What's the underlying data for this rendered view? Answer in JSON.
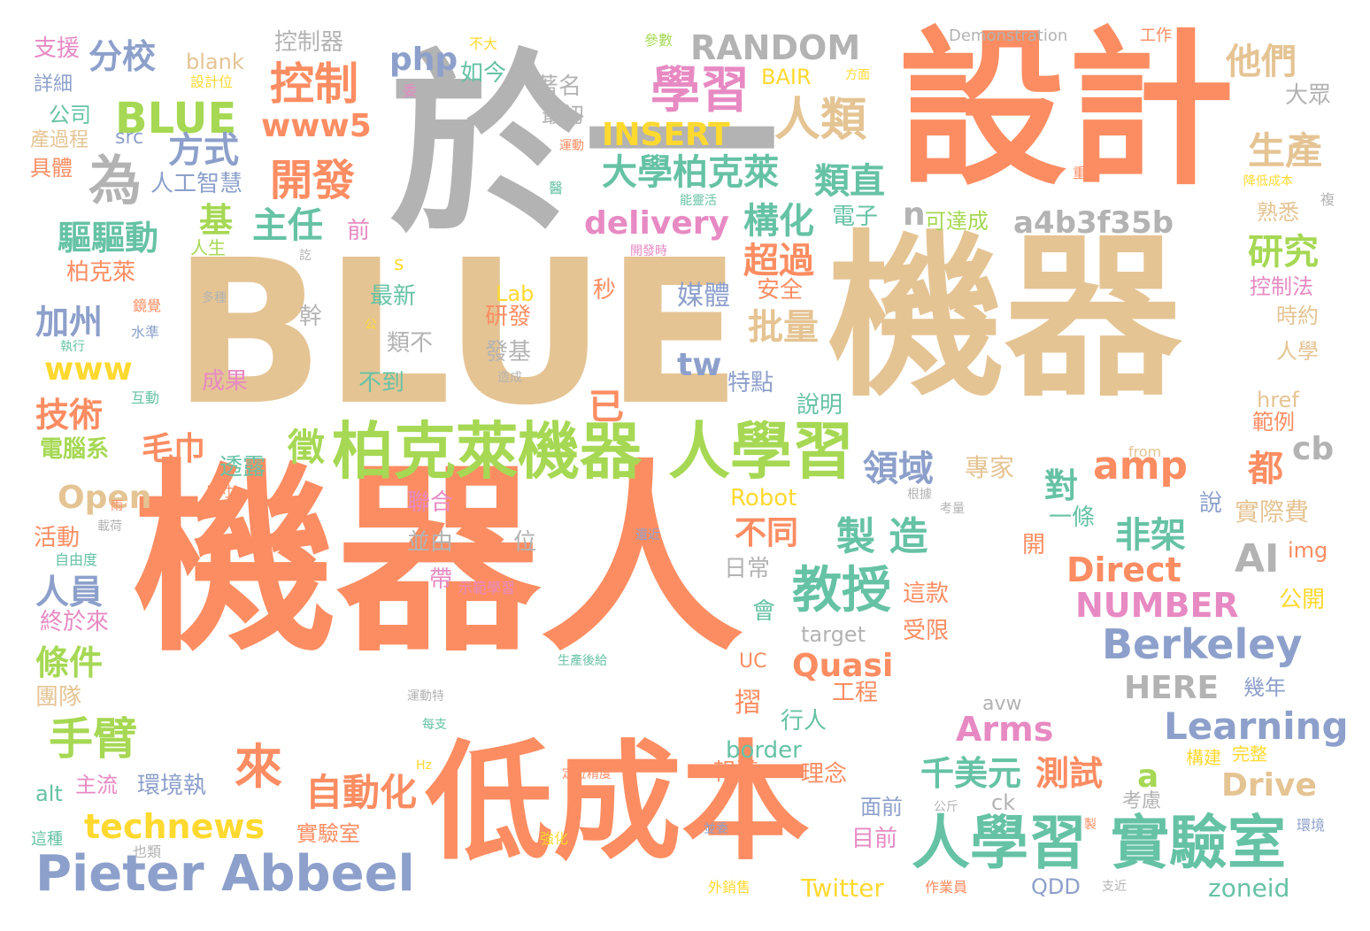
{
  "palette": {
    "orange": "#fc8d62",
    "gray": "#b3b3b3",
    "tan": "#e5c494",
    "green": "#a6d854",
    "teal": "#66c2a5",
    "blue": "#8da0cb",
    "pink": "#e78ac3",
    "yellow": "#ffd92f"
  },
  "words": [
    {
      "text": "機器人",
      "color": "orange"
    },
    {
      "text": "BLUE",
      "color": "tan"
    },
    {
      "text": "機器",
      "color": "tan"
    },
    {
      "text": "設計",
      "color": "orange"
    },
    {
      "text": "於一",
      "color": "gray"
    },
    {
      "text": "低成本",
      "color": "orange"
    },
    {
      "text": "柏克萊機器",
      "color": "green"
    },
    {
      "text": "人學習",
      "color": "green"
    },
    {
      "text": "人學習",
      "color": "teal"
    },
    {
      "text": "實驗室",
      "color": "teal"
    },
    {
      "text": "Pieter Abbeel",
      "color": "blue"
    },
    {
      "text": "學習",
      "color": "pink"
    },
    {
      "text": "控制",
      "color": "orange"
    },
    {
      "text": "BLUE",
      "color": "green"
    },
    {
      "text": "開發",
      "color": "orange"
    },
    {
      "text": "教授",
      "color": "teal"
    },
    {
      "text": "Berkeley",
      "color": "blue"
    },
    {
      "text": "人類",
      "color": "tan"
    },
    {
      "text": "手臂",
      "color": "green"
    },
    {
      "text": "來",
      "color": "orange"
    },
    {
      "text": "自動化",
      "color": "orange"
    },
    {
      "text": "大學柏克萊",
      "color": "teal"
    },
    {
      "text": "為",
      "color": "gray"
    },
    {
      "text": "他們",
      "color": "tan"
    },
    {
      "text": "RANDOM",
      "color": "gray"
    },
    {
      "text": "amp",
      "color": "orange"
    },
    {
      "text": "AI",
      "color": "gray"
    },
    {
      "text": "Learning",
      "color": "blue"
    },
    {
      "text": "Arms",
      "color": "pink"
    },
    {
      "text": "technews",
      "color": "yellow"
    },
    {
      "text": "a4b3f35b",
      "color": "gray"
    },
    {
      "text": "www5",
      "color": "orange"
    },
    {
      "text": "製 造",
      "color": "teal"
    },
    {
      "text": "千美元",
      "color": "teal"
    },
    {
      "text": "測試",
      "color": "orange"
    },
    {
      "text": "Direct",
      "color": "orange"
    },
    {
      "text": "NUMBER",
      "color": "pink"
    },
    {
      "text": "delivery",
      "color": "pink"
    },
    {
      "text": "分校",
      "color": "blue"
    },
    {
      "text": "INSERT",
      "color": "yellow"
    },
    {
      "text": "方式",
      "color": "blue"
    },
    {
      "text": "基",
      "color": "green"
    },
    {
      "text": "主任",
      "color": "teal"
    },
    {
      "text": "驅驅動",
      "color": "teal"
    },
    {
      "text": "構化",
      "color": "teal"
    },
    {
      "text": "超過",
      "color": "orange"
    },
    {
      "text": "批量",
      "color": "tan"
    },
    {
      "text": "php",
      "color": "blue"
    },
    {
      "text": "Open",
      "color": "tan"
    },
    {
      "text": "Quasi",
      "color": "orange"
    },
    {
      "text": "HERE",
      "color": "gray"
    },
    {
      "text": "Drive",
      "color": "tan"
    },
    {
      "text": "生產",
      "color": "tan"
    },
    {
      "text": "研究",
      "color": "green"
    },
    {
      "text": "類直",
      "color": "teal"
    },
    {
      "text": "領域",
      "color": "blue"
    },
    {
      "text": "非架",
      "color": "teal"
    },
    {
      "text": "徵",
      "color": "green"
    },
    {
      "text": "不同",
      "color": "orange"
    },
    {
      "text": "技術",
      "color": "orange"
    },
    {
      "text": "毛巾",
      "color": "orange"
    },
    {
      "text": "加州",
      "color": "blue"
    },
    {
      "text": "人員",
      "color": "blue"
    },
    {
      "text": "條件",
      "color": "green"
    },
    {
      "text": "電腦系",
      "color": "green"
    },
    {
      "text": "www",
      "color": "yellow"
    },
    {
      "text": "tw",
      "color": "blue"
    },
    {
      "text": "都",
      "color": "orange"
    },
    {
      "text": "對",
      "color": "teal"
    },
    {
      "text": "已",
      "color": "orange"
    },
    {
      "text": "n",
      "color": "gray"
    },
    {
      "text": "cb",
      "color": "gray"
    },
    {
      "text": "a",
      "color": "green"
    },
    {
      "text": "媒體",
      "color": "blue"
    },
    {
      "text": "摺",
      "color": "orange"
    },
    {
      "text": "專家",
      "color": "tan"
    },
    {
      "text": "實際費",
      "color": "tan"
    },
    {
      "text": "Robot",
      "color": "yellow"
    },
    {
      "text": "border",
      "color": "teal"
    },
    {
      "text": "Twitter",
      "color": "yellow"
    },
    {
      "text": "zoneid",
      "color": "teal"
    },
    {
      "text": "QDD",
      "color": "blue"
    },
    {
      "text": "Lab",
      "color": "yellow"
    },
    {
      "text": "blank",
      "color": "tan"
    },
    {
      "text": "BAIR",
      "color": "yellow"
    },
    {
      "text": "src",
      "color": "blue"
    },
    {
      "text": "target",
      "color": "gray"
    },
    {
      "text": "avw",
      "color": "gray"
    },
    {
      "text": "ck",
      "color": "gray"
    },
    {
      "text": "alt",
      "color": "teal"
    },
    {
      "text": "href",
      "color": "tan"
    },
    {
      "text": "img",
      "color": "orange"
    },
    {
      "text": "UC",
      "color": "orange"
    },
    {
      "text": "s",
      "color": "yellow"
    },
    {
      "text": "from",
      "color": "tan"
    },
    {
      "text": "Hz",
      "color": "yellow"
    },
    {
      "text": "Demonstration",
      "color": "gray"
    },
    {
      "text": "控制器",
      "color": "gray"
    },
    {
      "text": "如今",
      "color": "teal"
    },
    {
      "text": "著名",
      "color": "gray"
    },
    {
      "text": "最初",
      "color": "gray"
    },
    {
      "text": "人工智慧",
      "color": "blue"
    },
    {
      "text": "公司",
      "color": "teal"
    },
    {
      "text": "支援",
      "color": "pink"
    },
    {
      "text": "詳細",
      "color": "blue"
    },
    {
      "text": "產過程",
      "color": "tan"
    },
    {
      "text": "具體",
      "color": "orange"
    },
    {
      "text": "人生",
      "color": "green"
    },
    {
      "text": "柏克萊",
      "color": "orange"
    },
    {
      "text": "前",
      "color": "pink"
    },
    {
      "text": "可達成",
      "color": "green"
    },
    {
      "text": "電子",
      "color": "teal"
    },
    {
      "text": "安全",
      "color": "orange"
    },
    {
      "text": "秒",
      "color": "orange"
    },
    {
      "text": "最新",
      "color": "teal"
    },
    {
      "text": "類不",
      "color": "gray"
    },
    {
      "text": "發基",
      "color": "gray"
    },
    {
      "text": "研發",
      "color": "orange"
    },
    {
      "text": "幹",
      "color": "gray"
    },
    {
      "text": "成果",
      "color": "pink"
    },
    {
      "text": "不到",
      "color": "teal"
    },
    {
      "text": "特點",
      "color": "blue"
    },
    {
      "text": "說明",
      "color": "teal"
    },
    {
      "text": "透露",
      "color": "teal"
    },
    {
      "text": "聯合",
      "color": "pink"
    },
    {
      "text": "並由",
      "color": "gray"
    },
    {
      "text": "位",
      "color": "gray"
    },
    {
      "text": "帶",
      "color": "pink"
    },
    {
      "text": "示範學習",
      "color": "pink"
    },
    {
      "text": "日常",
      "color": "gray"
    },
    {
      "text": "會",
      "color": "teal"
    },
    {
      "text": "這款",
      "color": "orange"
    },
    {
      "text": "受限",
      "color": "orange"
    },
    {
      "text": "一條",
      "color": "teal"
    },
    {
      "text": "開",
      "color": "orange"
    },
    {
      "text": "說",
      "color": "blue"
    },
    {
      "text": "公開",
      "color": "yellow"
    },
    {
      "text": "時約",
      "color": "tan"
    },
    {
      "text": "人學",
      "color": "tan"
    },
    {
      "text": "範例",
      "color": "orange"
    },
    {
      "text": "熟悉",
      "color": "tan"
    },
    {
      "text": "控制法",
      "color": "pink"
    },
    {
      "text": "大眾",
      "color": "gray"
    },
    {
      "text": "工程",
      "color": "orange"
    },
    {
      "text": "行人",
      "color": "teal"
    },
    {
      "text": "報導",
      "color": "orange"
    },
    {
      "text": "理念",
      "color": "orange"
    },
    {
      "text": "面前",
      "color": "blue"
    },
    {
      "text": "目前",
      "color": "pink"
    },
    {
      "text": "構建",
      "color": "yellow"
    },
    {
      "text": "完整",
      "color": "yellow"
    },
    {
      "text": "考慮",
      "color": "gray"
    },
    {
      "text": "幾年",
      "color": "blue"
    },
    {
      "text": "環境執",
      "color": "blue"
    },
    {
      "text": "主流",
      "color": "pink"
    },
    {
      "text": "實驗室",
      "color": "orange"
    },
    {
      "text": "終於來",
      "color": "pink"
    },
    {
      "text": "團隊",
      "color": "tan"
    },
    {
      "text": "活動",
      "color": "orange"
    },
    {
      "text": "自由度",
      "color": "teal"
    },
    {
      "text": "這種",
      "color": "teal"
    },
    {
      "text": "也類",
      "color": "gray"
    },
    {
      "text": "外銷售",
      "color": "yellow"
    },
    {
      "text": "強化",
      "color": "yellow"
    },
    {
      "text": "並委",
      "color": "blue"
    },
    {
      "text": "作業員",
      "color": "orange"
    },
    {
      "text": "支近",
      "color": "gray"
    },
    {
      "text": "公斤",
      "color": "gray"
    },
    {
      "text": "環境",
      "color": "blue"
    },
    {
      "text": "製",
      "color": "orange"
    },
    {
      "text": "定位精度",
      "color": "orange"
    },
    {
      "text": "生產後給",
      "color": "teal"
    },
    {
      "text": "運動特",
      "color": "gray"
    },
    {
      "text": "每支",
      "color": "teal"
    },
    {
      "text": "根據",
      "color": "gray"
    },
    {
      "text": "考量",
      "color": "gray"
    },
    {
      "text": "還近",
      "color": "blue"
    },
    {
      "text": "尺寸",
      "color": "orange"
    },
    {
      "text": "載荷",
      "color": "gray"
    },
    {
      "text": "雨",
      "color": "orange"
    },
    {
      "text": "互動",
      "color": "teal"
    },
    {
      "text": "執行",
      "color": "teal"
    },
    {
      "text": "水準",
      "color": "blue"
    },
    {
      "text": "鏡覺",
      "color": "orange"
    },
    {
      "text": "多種",
      "color": "gray"
    },
    {
      "text": "訖",
      "color": "gray"
    },
    {
      "text": "公",
      "color": "yellow"
    },
    {
      "text": "造成",
      "color": "gray"
    },
    {
      "text": "開發時",
      "color": "pink"
    },
    {
      "text": "能靈活",
      "color": "teal"
    },
    {
      "text": "醫",
      "color": "teal"
    },
    {
      "text": "運動",
      "color": "orange"
    },
    {
      "text": "參數",
      "color": "green"
    },
    {
      "text": "不大",
      "color": "yellow"
    },
    {
      "text": "委",
      "color": "pink"
    },
    {
      "text": "工作",
      "color": "orange"
    },
    {
      "text": "方面",
      "color": "yellow"
    },
    {
      "text": "設計位",
      "color": "yellow"
    },
    {
      "text": "重",
      "color": "orange"
    },
    {
      "text": "降低成本",
      "color": "yellow"
    },
    {
      "text": "複",
      "color": "gray"
    }
  ]
}
